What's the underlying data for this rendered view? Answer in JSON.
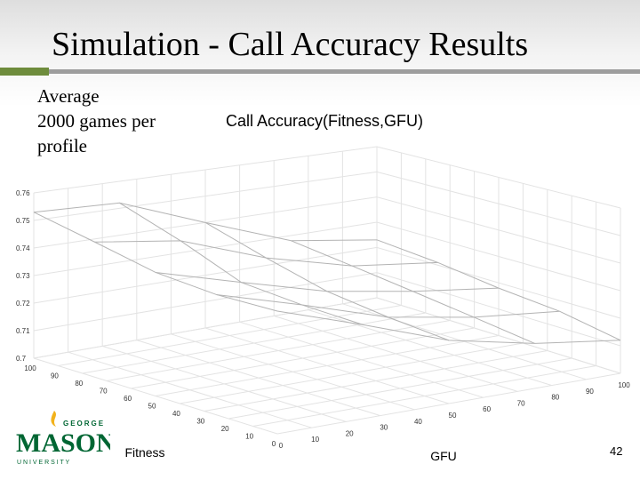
{
  "slide": {
    "title": "Simulation - Call Accuracy Results",
    "note_lines": [
      "Average",
      "2000 games per",
      "profile"
    ],
    "page_number": "42"
  },
  "logo": {
    "george": "GEORGE",
    "mason": "MASON",
    "university": "U N I V E R S I T Y",
    "colors": {
      "green": "#006633",
      "gold": "#f2b21b"
    }
  },
  "colors": {
    "title_rule_green": "#6e8c3c",
    "title_rule_gray": "#9d9d9d",
    "surface_edge": "#b3b3b3",
    "grid": "#e3e3e3"
  },
  "chart_data": {
    "type": "surface",
    "title": "Call Accuracy(Fitness,GFU)",
    "xlabel": "Fitness",
    "ylabel": "GFU",
    "zlabel": "",
    "x": [
      0,
      25,
      50,
      75,
      100
    ],
    "y": [
      0,
      25,
      50,
      75,
      100
    ],
    "z": [
      [
        0.741,
        0.732,
        0.722,
        0.716,
        0.712
      ],
      [
        0.741,
        0.733,
        0.724,
        0.719,
        0.716
      ],
      [
        0.743,
        0.735,
        0.727,
        0.722,
        0.718
      ],
      [
        0.748,
        0.744,
        0.733,
        0.725,
        0.721
      ],
      [
        0.753,
        0.752,
        0.74,
        0.728,
        0.723
      ]
    ],
    "z_note": "rows follow x (Fitness), columns follow y (GFU)",
    "xlim": [
      0,
      100
    ],
    "ylim": [
      0,
      100
    ],
    "zlim": [
      0.7,
      0.76
    ],
    "x_ticks": [
      "0",
      "10",
      "20",
      "30",
      "40",
      "50",
      "60",
      "70",
      "80",
      "90",
      "100"
    ],
    "y_ticks": [
      "0",
      "10",
      "20",
      "30",
      "40",
      "50",
      "60",
      "70",
      "80",
      "90",
      "100"
    ],
    "z_ticks": [
      "0.7",
      "0.71",
      "0.72",
      "0.73",
      "0.74",
      "0.75",
      "0.76"
    ],
    "grid": true
  }
}
